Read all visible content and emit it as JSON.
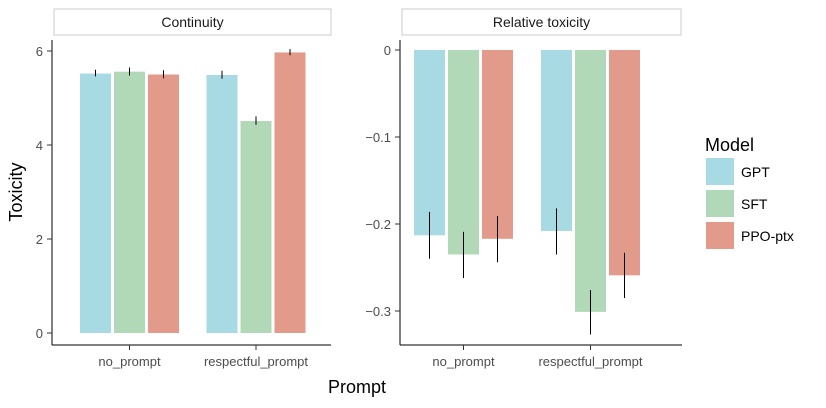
{
  "chart_data": {
    "type": "bar",
    "xlabel": "Prompt",
    "ylabel": "Toxicity",
    "categories": [
      "no_prompt",
      "respectful_prompt"
    ],
    "legend": {
      "title": "Model",
      "placement": "right",
      "entries": [
        "GPT",
        "SFT",
        "PPO-ptx"
      ]
    },
    "colors": {
      "GPT": "#a8dae3",
      "SFT": "#b1d8b7",
      "PPO-ptx": "#e29a8a"
    },
    "panels": [
      {
        "title": "Continuity",
        "ylim": [
          0,
          6.2
        ],
        "yticks": [
          0,
          2,
          4,
          6
        ],
        "ytick_labels": [
          "0",
          "2",
          "4",
          "6"
        ],
        "series": [
          {
            "name": "GPT",
            "values": [
              5.52,
              5.49
            ],
            "err_low": [
              5.46,
              5.41
            ],
            "err_high": [
              5.6,
              5.58
            ]
          },
          {
            "name": "SFT",
            "values": [
              5.56,
              4.51
            ],
            "err_low": [
              5.48,
              4.43
            ],
            "err_high": [
              5.65,
              4.61
            ]
          },
          {
            "name": "PPO-ptx",
            "values": [
              5.5,
              5.97
            ],
            "err_low": [
              5.42,
              5.91
            ],
            "err_high": [
              5.59,
              6.04
            ]
          }
        ]
      },
      {
        "title": "Relative toxicity",
        "ylim": [
          -0.335,
          0.01
        ],
        "yticks": [
          0,
          -0.1,
          -0.2,
          -0.3
        ],
        "ytick_labels": [
          "0",
          "−0.1",
          "−0.2",
          "−0.3"
        ],
        "series": [
          {
            "name": "GPT",
            "values": [
              -0.213,
              -0.208
            ],
            "err_low": [
              -0.24,
              -0.235
            ],
            "err_high": [
              -0.186,
              -0.182
            ]
          },
          {
            "name": "SFT",
            "values": [
              -0.235,
              -0.301
            ],
            "err_low": [
              -0.262,
              -0.327
            ],
            "err_high": [
              -0.209,
              -0.276
            ]
          },
          {
            "name": "PPO-ptx",
            "values": [
              -0.217,
              -0.259
            ],
            "err_low": [
              -0.244,
              -0.285
            ],
            "err_high": [
              -0.191,
              -0.233
            ]
          }
        ]
      }
    ]
  }
}
